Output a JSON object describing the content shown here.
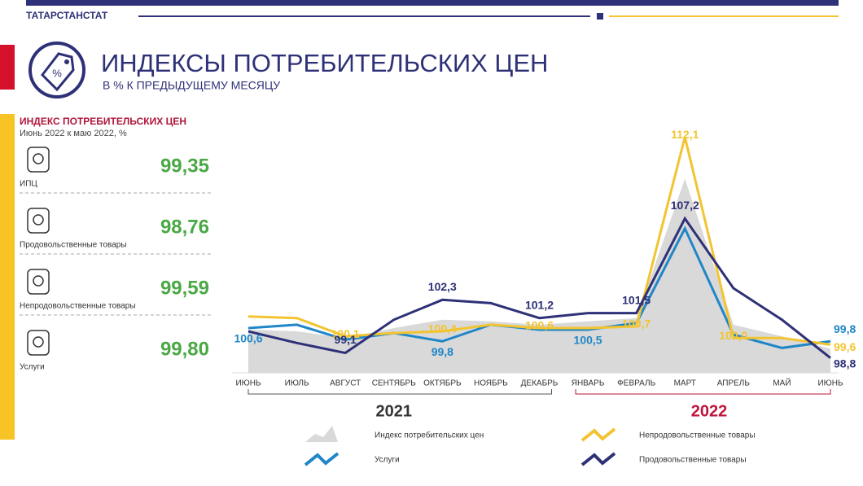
{
  "header": {
    "brand": "ТАТАРСТАНСТАТ",
    "title": "ИНДЕКСЫ ПОТРЕБИТЕЛЬСКИХ ЦЕН",
    "subtitle": "В % К ПРЕДЫДУЩЕМУ  МЕСЯЦУ"
  },
  "panel": {
    "title": "ИНДЕКС ПОТРЕБИТЕЛЬСКИХ ЦЕН",
    "subtitle": "Июнь 2022 к маю 2022, %",
    "items": [
      {
        "label": "ИПЦ",
        "value": "99,35"
      },
      {
        "label": "Продовольственные  товары",
        "value": "98,76"
      },
      {
        "label": "Непродовольственные  товары",
        "value": "99,59"
      },
      {
        "label": "Услуги",
        "value": "99,80"
      }
    ]
  },
  "chart_data": {
    "type": "line",
    "categories": [
      "ИЮНЬ",
      "ИЮЛЬ",
      "АВГУСТ",
      "СЕНТЯБРЬ",
      "ОКТЯБРЬ",
      "НОЯБРЬ",
      "ДЕКАБРЬ",
      "ЯНВАРЬ",
      "ФЕВРАЛЬ",
      "МАРТ",
      "АПРЕЛЬ",
      "МАЙ",
      "ИЮНЬ"
    ],
    "year_labels": [
      "2021",
      "2022"
    ],
    "ylim": [
      97.9,
      113.5
    ],
    "series": [
      {
        "name": "Индекс потребительских  цен",
        "style": "area",
        "color": "#d9d9d9",
        "values": [
          100.5,
          100.4,
          100.0,
          100.6,
          101.1,
          101.0,
          100.8,
          101.0,
          101.2,
          109.6,
          100.8,
          100.1,
          99.35
        ]
      },
      {
        "name": "Услуги",
        "style": "line",
        "color": "#1f86c8",
        "values": [
          100.6,
          100.8,
          99.9,
          100.3,
          99.8,
          100.8,
          100.5,
          100.5,
          100.9,
          106.6,
          100.2,
          99.4,
          99.8
        ],
        "value_labels": [
          "100,6",
          null,
          null,
          null,
          "99,8",
          null,
          null,
          "100,5",
          null,
          null,
          null,
          null,
          "99,8"
        ]
      },
      {
        "name": "Непродовольственные  товары",
        "style": "line",
        "color": "#f2c431",
        "values": [
          101.3,
          101.2,
          100.1,
          100.3,
          100.4,
          100.8,
          100.6,
          100.6,
          100.7,
          112.1,
          100.0,
          100.0,
          99.6
        ],
        "value_labels": [
          null,
          null,
          "100,1",
          null,
          "100,4",
          null,
          "100,6",
          null,
          "100,7",
          "112,1",
          "100,0",
          null,
          "99,6"
        ]
      },
      {
        "name": "Продовольственные  товары",
        "style": "line",
        "color": "#2e3177",
        "values": [
          100.4,
          99.7,
          99.1,
          101.1,
          102.3,
          102.1,
          101.2,
          101.5,
          101.5,
          107.2,
          103.0,
          101.1,
          98.8
        ],
        "value_labels": [
          null,
          null,
          "99,1",
          null,
          "102,3",
          null,
          "101,2",
          null,
          "101,5",
          "107,2",
          null,
          null,
          "98,8"
        ]
      }
    ]
  }
}
